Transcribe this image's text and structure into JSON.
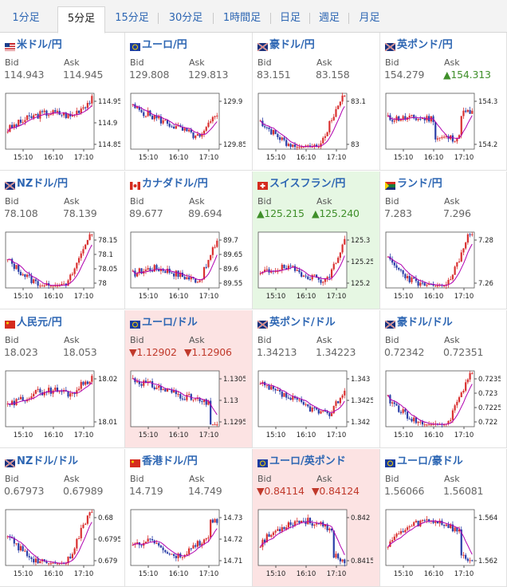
{
  "tabs": [
    {
      "label": "1分足",
      "active": false
    },
    {
      "label": "5分足",
      "active": true
    },
    {
      "label": "15分足",
      "active": false
    },
    {
      "label": "30分足",
      "active": false
    },
    {
      "label": "1時間足",
      "active": false
    },
    {
      "label": "日足",
      "active": false
    },
    {
      "label": "週足",
      "active": false
    },
    {
      "label": "月足",
      "active": false
    }
  ],
  "labels": {
    "bid": "Bid",
    "ask": "Ask"
  },
  "x_ticks": [
    "15:10",
    "16:10",
    "17:10"
  ],
  "pairs": [
    {
      "name": "米ドル/円",
      "flag": "usjp",
      "bid": "114.943",
      "ask": "114.945",
      "bid_dir": "",
      "ask_dir": "",
      "hl": "",
      "y_ticks": [
        "114.95",
        "114.9",
        "114.85"
      ],
      "seed": 3,
      "shape": "mid-up"
    },
    {
      "name": "ユーロ/円",
      "flag": "eujp",
      "bid": "129.808",
      "ask": "129.813",
      "bid_dir": "",
      "ask_dir": "",
      "hl": "",
      "y_ticks": [
        "129.9",
        "129.85"
      ],
      "seed": 5,
      "shape": "down-up"
    },
    {
      "name": "豪ドル/円",
      "flag": "aujp",
      "bid": "83.151",
      "ask": "83.158",
      "bid_dir": "",
      "ask_dir": "",
      "hl": "",
      "y_ticks": [
        "83.1",
        "83"
      ],
      "seed": 7,
      "shape": "dip-up"
    },
    {
      "name": "英ポンド/円",
      "flag": "gbjp",
      "bid": "154.279",
      "ask": "154.313",
      "bid_dir": "",
      "ask_dir": "up",
      "hl": "",
      "y_ticks": [
        "154.3",
        "154.2"
      ],
      "seed": 11,
      "shape": "flat-dip"
    },
    {
      "name": "NZドル/円",
      "flag": "nzjp",
      "bid": "78.108",
      "ask": "78.139",
      "bid_dir": "",
      "ask_dir": "",
      "hl": "",
      "y_ticks": [
        "78.15",
        "78.1",
        "78.05",
        "78"
      ],
      "seed": 13,
      "shape": "dip-up"
    },
    {
      "name": "カナダドル/円",
      "flag": "cajp",
      "bid": "89.677",
      "ask": "89.694",
      "bid_dir": "",
      "ask_dir": "",
      "hl": "",
      "y_ticks": [
        "89.7",
        "89.65",
        "89.6",
        "89.55"
      ],
      "seed": 17,
      "shape": "flat-up"
    },
    {
      "name": "スイスフラン/円",
      "flag": "chjp",
      "bid": "125.215",
      "ask": "125.240",
      "bid_dir": "up",
      "ask_dir": "up",
      "hl": "up",
      "y_ticks": [
        "125.3",
        "125.25",
        "125.2"
      ],
      "seed": 19,
      "shape": "flat-up"
    },
    {
      "name": "ランド/円",
      "flag": "zajp",
      "bid": "7.283",
      "ask": "7.296",
      "bid_dir": "",
      "ask_dir": "",
      "hl": "",
      "y_ticks": [
        "7.28",
        "7.26"
      ],
      "seed": 23,
      "shape": "dip-up"
    },
    {
      "name": "人民元/円",
      "flag": "cnjp",
      "bid": "18.023",
      "ask": "18.053",
      "bid_dir": "",
      "ask_dir": "",
      "hl": "",
      "y_ticks": [
        "18.02",
        "18.01"
      ],
      "seed": 29,
      "shape": "mid-up"
    },
    {
      "name": "ユーロ/ドル",
      "flag": "euus",
      "bid": "1.12902",
      "ask": "1.12906",
      "bid_dir": "down",
      "ask_dir": "down",
      "hl": "down",
      "y_ticks": [
        "1.1305",
        "1.13",
        "1.1295"
      ],
      "seed": 31,
      "shape": "down"
    },
    {
      "name": "英ポンド/ドル",
      "flag": "gbus",
      "bid": "1.34213",
      "ask": "1.34223",
      "bid_dir": "",
      "ask_dir": "",
      "hl": "",
      "y_ticks": [
        "1.343",
        "1.3425",
        "1.342"
      ],
      "seed": 37,
      "shape": "down-up"
    },
    {
      "name": "豪ドル/ドル",
      "flag": "auus",
      "bid": "0.72342",
      "ask": "0.72351",
      "bid_dir": "",
      "ask_dir": "",
      "hl": "",
      "y_ticks": [
        "0.7235",
        "0.723",
        "0.7225",
        "0.722"
      ],
      "seed": 41,
      "shape": "dip-up"
    },
    {
      "name": "NZドル/ドル",
      "flag": "nzus",
      "bid": "0.67973",
      "ask": "0.67989",
      "bid_dir": "",
      "ask_dir": "",
      "hl": "",
      "y_ticks": [
        "0.68",
        "0.6795",
        "0.679"
      ],
      "seed": 43,
      "shape": "dip-up"
    },
    {
      "name": "香港ドル/円",
      "flag": "hkjp",
      "bid": "14.719",
      "ask": "14.749",
      "bid_dir": "",
      "ask_dir": "",
      "hl": "",
      "y_ticks": [
        "14.73",
        "14.72",
        "14.71"
      ],
      "seed": 47,
      "shape": "spiky"
    },
    {
      "name": "ユーロ/英ポンド",
      "flag": "eugb",
      "bid": "0.84114",
      "ask": "0.84124",
      "bid_dir": "down",
      "ask_dir": "down",
      "hl": "down",
      "y_ticks": [
        "0.842",
        "0.8415"
      ],
      "seed": 53,
      "shape": "up-down"
    },
    {
      "name": "ユーロ/豪ドル",
      "flag": "euau",
      "bid": "1.56066",
      "ask": "1.56081",
      "bid_dir": "",
      "ask_dir": "",
      "hl": "",
      "y_ticks": [
        "1.564",
        "1.562"
      ],
      "seed": 59,
      "shape": "up-down"
    }
  ],
  "colors": {
    "up_candle": "#d93030",
    "down_candle": "#2b3fa8",
    "ma": "#b000b0",
    "link": "#2d66b3",
    "up_text": "#3f8f2a",
    "down_text": "#c0392b"
  }
}
